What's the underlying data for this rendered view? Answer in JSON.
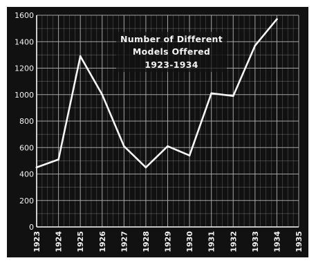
{
  "chart_data": {
    "type": "line",
    "title_lines": [
      "Number of Different",
      "Models Offered",
      "1923-1934"
    ],
    "xlabel": "",
    "ylabel": "",
    "x_ticks": [
      "1923",
      "1924",
      "1925",
      "1926",
      "1927",
      "1928",
      "1929",
      "1930",
      "1931",
      "1932",
      "1933",
      "1934",
      "1935"
    ],
    "y_ticks": [
      "0",
      "200",
      "400",
      "600",
      "800",
      "1000",
      "1200",
      "1400",
      "1600"
    ],
    "xlim": [
      1923,
      1935
    ],
    "ylim": [
      0,
      1600
    ],
    "grid": true,
    "series": [
      {
        "x": [
          1923,
          1924,
          1925,
          1926,
          1927,
          1928,
          1929,
          1930,
          1931,
          1932,
          1933,
          1934
        ],
        "values": [
          450,
          510,
          1290,
          1000,
          610,
          450,
          610,
          540,
          1010,
          990,
          1370,
          1570
        ]
      }
    ],
    "colors": {
      "background": "#111111",
      "line": "#f5f5f5",
      "grid": "#bdbdbd",
      "frame": "#ffffff"
    }
  }
}
